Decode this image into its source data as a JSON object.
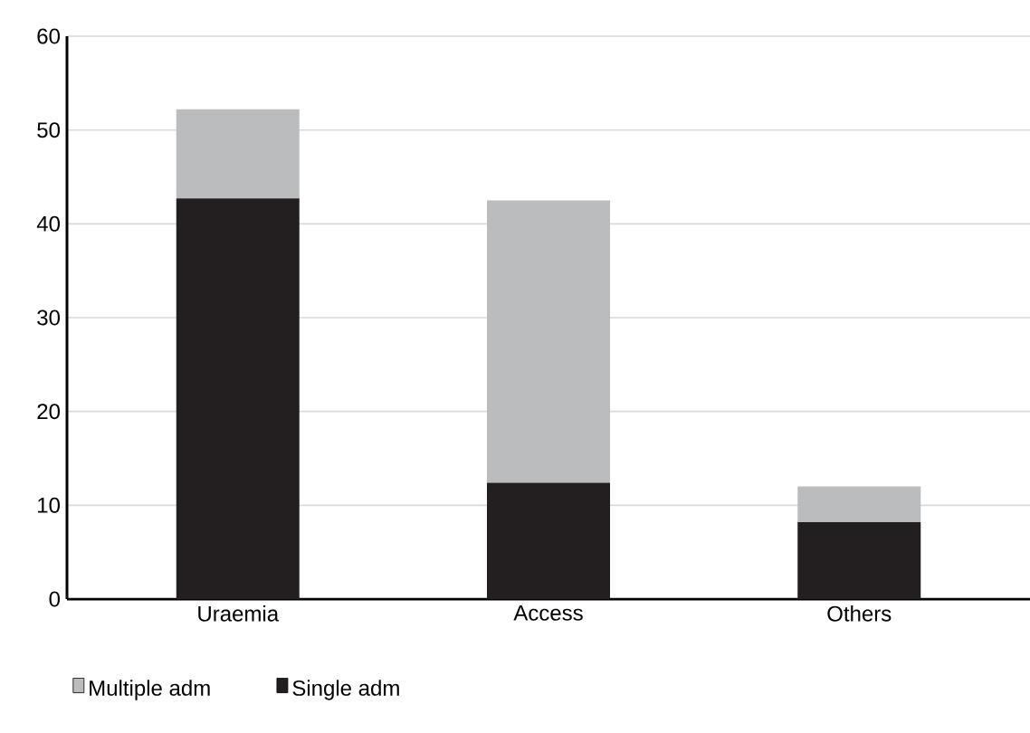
{
  "chart_data": {
    "type": "bar",
    "stacked": true,
    "categories": [
      "Uraemia",
      "Access",
      "Others"
    ],
    "series": [
      {
        "name": "Single adm",
        "color": "#231f20",
        "values": [
          42.7,
          12.4,
          8.2
        ]
      },
      {
        "name": "Multiple adm",
        "color": "#bbbcbe",
        "values": [
          9.5,
          30.1,
          3.8
        ]
      }
    ],
    "ylim": [
      0,
      60
    ],
    "yticks": [
      0,
      10,
      20,
      30,
      40,
      50,
      60
    ],
    "grid": "y",
    "legend": "bottom"
  }
}
